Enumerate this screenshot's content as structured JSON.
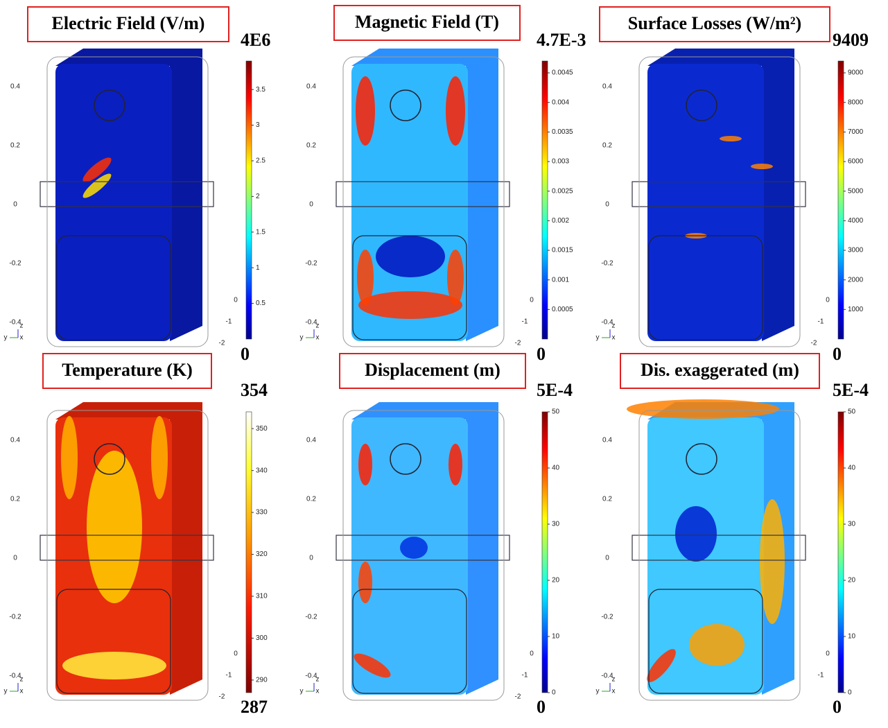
{
  "panels": [
    {
      "title": "Electric Field (V/m)",
      "max_label": "4E6",
      "min_label": "0",
      "colormap": "jet",
      "colorbar": {
        "range": [
          0,
          3.9
        ],
        "ticks": [
          0.5,
          1,
          1.5,
          2,
          2.5,
          3,
          3.5
        ]
      },
      "z_ticks": [
        0.4,
        0.2,
        0,
        -0.2,
        -0.4
      ],
      "x_ticks": [
        0,
        -1,
        -2
      ],
      "triad": [
        "y",
        "x",
        "z"
      ]
    },
    {
      "title": "Magnetic Field (T)",
      "max_label": "4.7E-3",
      "min_label": "0",
      "colormap": "jet",
      "colorbar": {
        "range": [
          0,
          0.0047
        ],
        "ticks": [
          0.0005,
          0.001,
          0.0015,
          0.002,
          0.0025,
          0.003,
          0.0035,
          0.004,
          0.0045
        ]
      },
      "z_ticks": [
        0.4,
        0.2,
        0,
        -0.2,
        -0.4
      ],
      "x_ticks": [
        0,
        -1,
        -2
      ],
      "triad": [
        "y",
        "x",
        "z"
      ]
    },
    {
      "title": "Surface Losses (W/m²)",
      "max_label": "9409",
      "min_label": "0",
      "colormap": "jet",
      "colorbar": {
        "range": [
          0,
          9400
        ],
        "ticks": [
          1000,
          2000,
          3000,
          4000,
          5000,
          6000,
          7000,
          8000,
          9000
        ]
      },
      "z_ticks": [
        0.4,
        0.2,
        0,
        -0.2,
        -0.4
      ],
      "x_ticks": [
        0,
        -1,
        -2
      ],
      "triad": [
        "y",
        "x",
        "z"
      ]
    },
    {
      "title": "Temperature (K)",
      "max_label": "354",
      "min_label": "287",
      "colormap": "heat",
      "colorbar": {
        "range": [
          287,
          354
        ],
        "ticks": [
          290,
          300,
          310,
          320,
          330,
          340,
          350
        ]
      },
      "z_ticks": [
        0.4,
        0.2,
        0,
        -0.2,
        -0.4
      ],
      "x_ticks": [
        0,
        -1,
        -2
      ],
      "triad": [
        "y",
        "x",
        "z"
      ]
    },
    {
      "title": "Displacement (m)",
      "max_label": "5E-4",
      "min_label": "0",
      "colormap": "jet",
      "colorbar": {
        "range": [
          0,
          50
        ],
        "ticks": [
          0,
          10,
          20,
          30,
          40,
          50
        ]
      },
      "z_ticks": [
        0.4,
        0.2,
        0,
        -0.2,
        -0.4
      ],
      "x_ticks": [
        0,
        -1,
        -2
      ],
      "triad": [
        "y",
        "x",
        "z"
      ]
    },
    {
      "title": "Dis. exaggerated (m)",
      "max_label": "5E-4",
      "min_label": "0",
      "colormap": "jet",
      "colorbar": {
        "range": [
          0,
          50
        ],
        "ticks": [
          0,
          10,
          20,
          30,
          40,
          50
        ]
      },
      "z_ticks": [
        0.4,
        0.2,
        0,
        -0.2,
        -0.4
      ],
      "x_ticks": [
        0,
        -1
      ],
      "triad": [
        "y",
        "x",
        "z"
      ]
    }
  ]
}
